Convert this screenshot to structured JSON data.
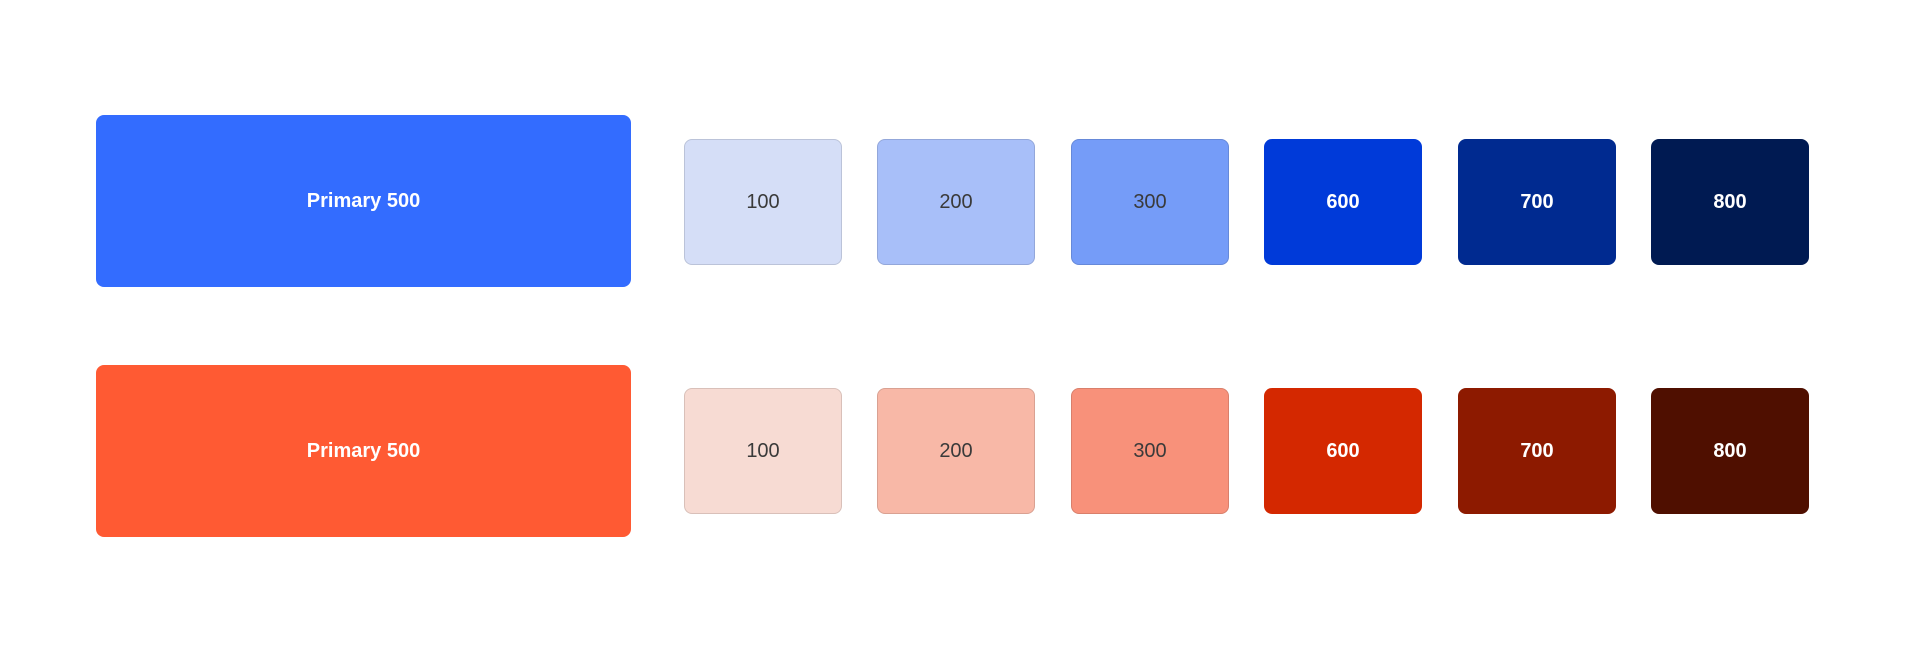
{
  "palettes": [
    {
      "main": {
        "label": "Primary 500",
        "color": "#336cff"
      },
      "swatches": [
        {
          "label": "100",
          "color": "#d5def7"
        },
        {
          "label": "200",
          "color": "#a8bff9"
        },
        {
          "label": "300",
          "color": "#759cf8"
        },
        {
          "label": "600",
          "color": "#003ad9"
        },
        {
          "label": "700",
          "color": "#002a90"
        },
        {
          "label": "800",
          "color": "#001a52"
        }
      ]
    },
    {
      "main": {
        "label": "Primary 500",
        "color": "#ff5a33"
      },
      "swatches": [
        {
          "label": "100",
          "color": "#f7dbd3"
        },
        {
          "label": "200",
          "color": "#f8b8a7"
        },
        {
          "label": "300",
          "color": "#f8917a"
        },
        {
          "label": "600",
          "color": "#d42800"
        },
        {
          "label": "700",
          "color": "#8d1a00"
        },
        {
          "label": "800",
          "color": "#4f0f00"
        }
      ]
    }
  ]
}
